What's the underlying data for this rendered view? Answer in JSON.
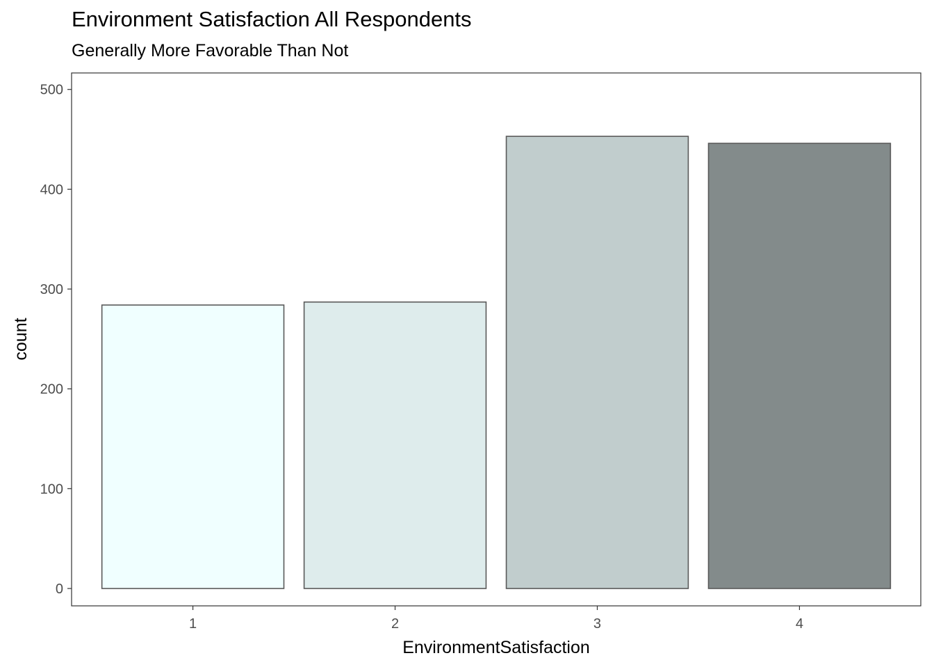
{
  "chart_data": {
    "type": "bar",
    "title": "Environment Satisfaction All Respondents",
    "subtitle": "Generally More Favorable Than Not",
    "xlabel": "EnvironmentSatisfaction",
    "ylabel": "count",
    "categories": [
      "1",
      "2",
      "3",
      "4"
    ],
    "values": [
      284,
      287,
      453,
      446
    ],
    "ylim": [
      -17.4,
      516.5
    ],
    "yticks": [
      0,
      100,
      200,
      300,
      400,
      500
    ],
    "grid": false,
    "bar_colors": [
      "#f0ffff",
      "#deecec",
      "#c1cdcd",
      "#838b8b"
    ],
    "bar_stroke": "#595959"
  }
}
